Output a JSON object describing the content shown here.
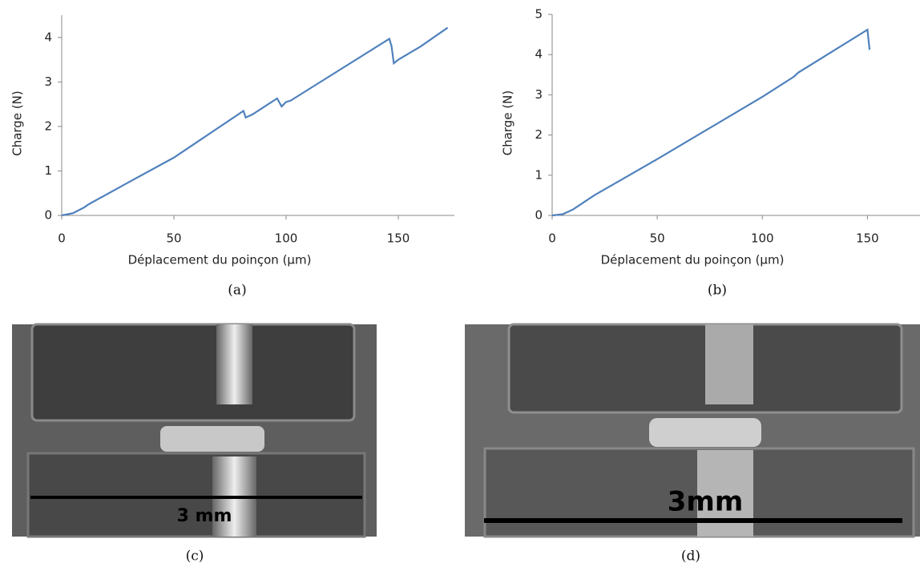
{
  "chart_data": [
    {
      "type": "line",
      "ylabel": "Charge (N)",
      "xlabel": "Déplacement du poinçon (µm)",
      "x": [
        0,
        5,
        10,
        12,
        30,
        50,
        81,
        82,
        85,
        96,
        98,
        100,
        102,
        146,
        147,
        148,
        150,
        160,
        172
      ],
      "series": [
        {
          "color": "#4f81bd",
          "values": [
            0,
            0.05,
            0.18,
            0.25,
            0.75,
            1.3,
            2.35,
            2.2,
            2.27,
            2.63,
            2.45,
            2.55,
            2.58,
            3.97,
            3.8,
            3.42,
            3.5,
            3.8,
            4.22
          ]
        }
      ],
      "xlim": [
        0,
        175
      ],
      "xticks": [
        0,
        50,
        100,
        150
      ],
      "ylim": [
        0,
        4.5
      ],
      "yticks": [
        0,
        1,
        2,
        3,
        4
      ]
    },
    {
      "type": "line",
      "ylabel": "Charge (N)",
      "xlabel": "Déplacement du poinçon (µm)",
      "x": [
        0,
        5,
        10,
        20,
        50,
        100,
        115,
        117,
        150,
        151
      ],
      "series": [
        {
          "color": "#4f81bd",
          "values": [
            0,
            0.03,
            0.15,
            0.5,
            1.4,
            2.95,
            3.45,
            3.55,
            4.62,
            4.12
          ]
        }
      ],
      "xlim": [
        0,
        175
      ],
      "xticks": [
        0,
        50,
        100,
        150
      ],
      "ylim": [
        0,
        5
      ],
      "yticks": [
        0,
        1,
        2,
        3,
        4,
        5
      ]
    }
  ],
  "captions": [
    "(a)",
    "(b)",
    "(c)",
    "(d)"
  ],
  "photos": [
    {
      "label": "3 mm"
    },
    {
      "label": "3mm"
    }
  ]
}
